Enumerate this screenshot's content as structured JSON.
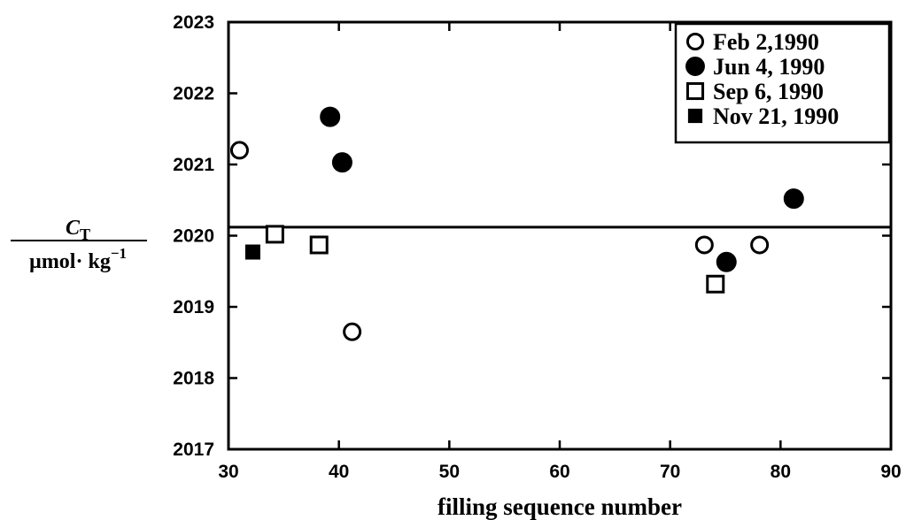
{
  "chart_data": {
    "type": "scatter",
    "title": "",
    "xlabel": "filling sequence number",
    "ylabel": {
      "top": "C",
      "top_sub": "T",
      "bottom": "µmol· kg",
      "bottom_sup": "−1"
    },
    "xlim": [
      30,
      90
    ],
    "ylim": [
      2017,
      2023
    ],
    "xticks": [
      30,
      40,
      50,
      60,
      70,
      80,
      90
    ],
    "yticks": [
      2017,
      2018,
      2019,
      2020,
      2021,
      2022,
      2023
    ],
    "reference_line": 2020.12,
    "grid": false,
    "legend_position": "top-right",
    "series": [
      {
        "name": "Feb 2,1990",
        "marker": "open-circle",
        "points": [
          [
            31,
            2021.2
          ],
          [
            41.2,
            2018.65
          ],
          [
            73.1,
            2019.87
          ],
          [
            78.1,
            2019.87
          ]
        ]
      },
      {
        "name": "Jun 4, 1990",
        "marker": "filled-circle",
        "points": [
          [
            39.2,
            2021.67
          ],
          [
            40.3,
            2021.03
          ],
          [
            75.1,
            2019.63
          ],
          [
            81.2,
            2020.52
          ]
        ]
      },
      {
        "name": "Sep 6, 1990",
        "marker": "open-square",
        "points": [
          [
            34.2,
            2020.02
          ],
          [
            38.2,
            2019.87
          ],
          [
            74.1,
            2019.32
          ]
        ]
      },
      {
        "name": "Nov 21, 1990",
        "marker": "filled-square",
        "points": [
          [
            32.2,
            2019.77
          ]
        ]
      }
    ]
  }
}
